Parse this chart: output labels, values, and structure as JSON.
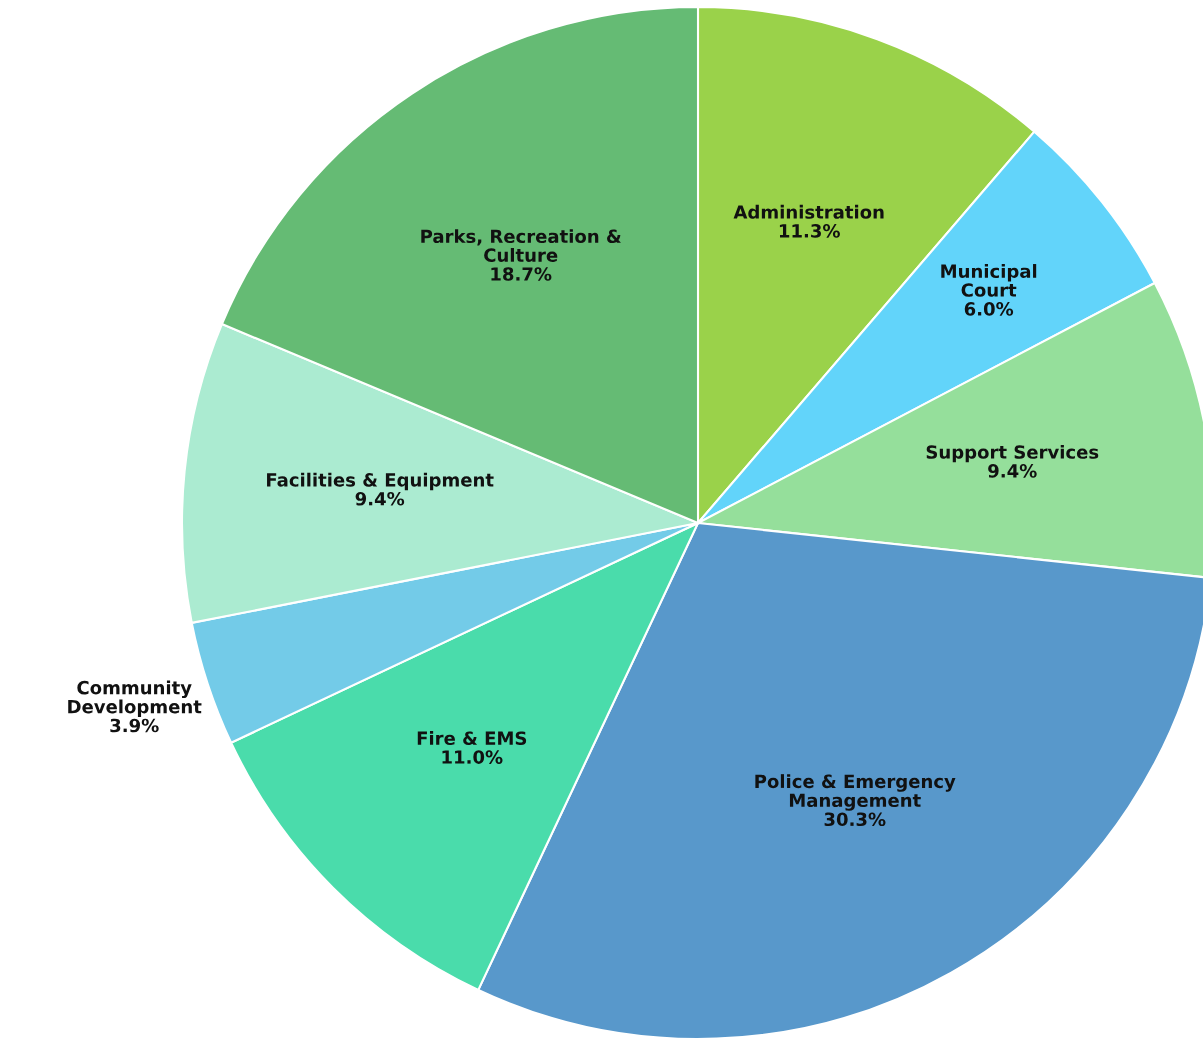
{
  "chart_data": {
    "type": "pie",
    "categories": [
      "Administration",
      "Municipal Court",
      "Support Services",
      "Police & Emergency Management",
      "Fire & EMS",
      "Community Development",
      "Facilities & Equipment",
      "Parks, Recreation & Culture"
    ],
    "values": [
      11.3,
      6.0,
      9.4,
      30.3,
      11.0,
      3.9,
      9.4,
      18.7
    ],
    "colors": [
      "#9ad24a",
      "#62d4fa",
      "#95df9b",
      "#5898cb",
      "#4adcab",
      "#73cbe8",
      "#abebd1",
      "#65bb74"
    ],
    "value_labels": [
      "11.3%",
      "6.0%",
      "9.4%",
      "30.3%",
      "11.0%",
      "3.9%",
      "9.4%",
      "18.7%"
    ]
  }
}
